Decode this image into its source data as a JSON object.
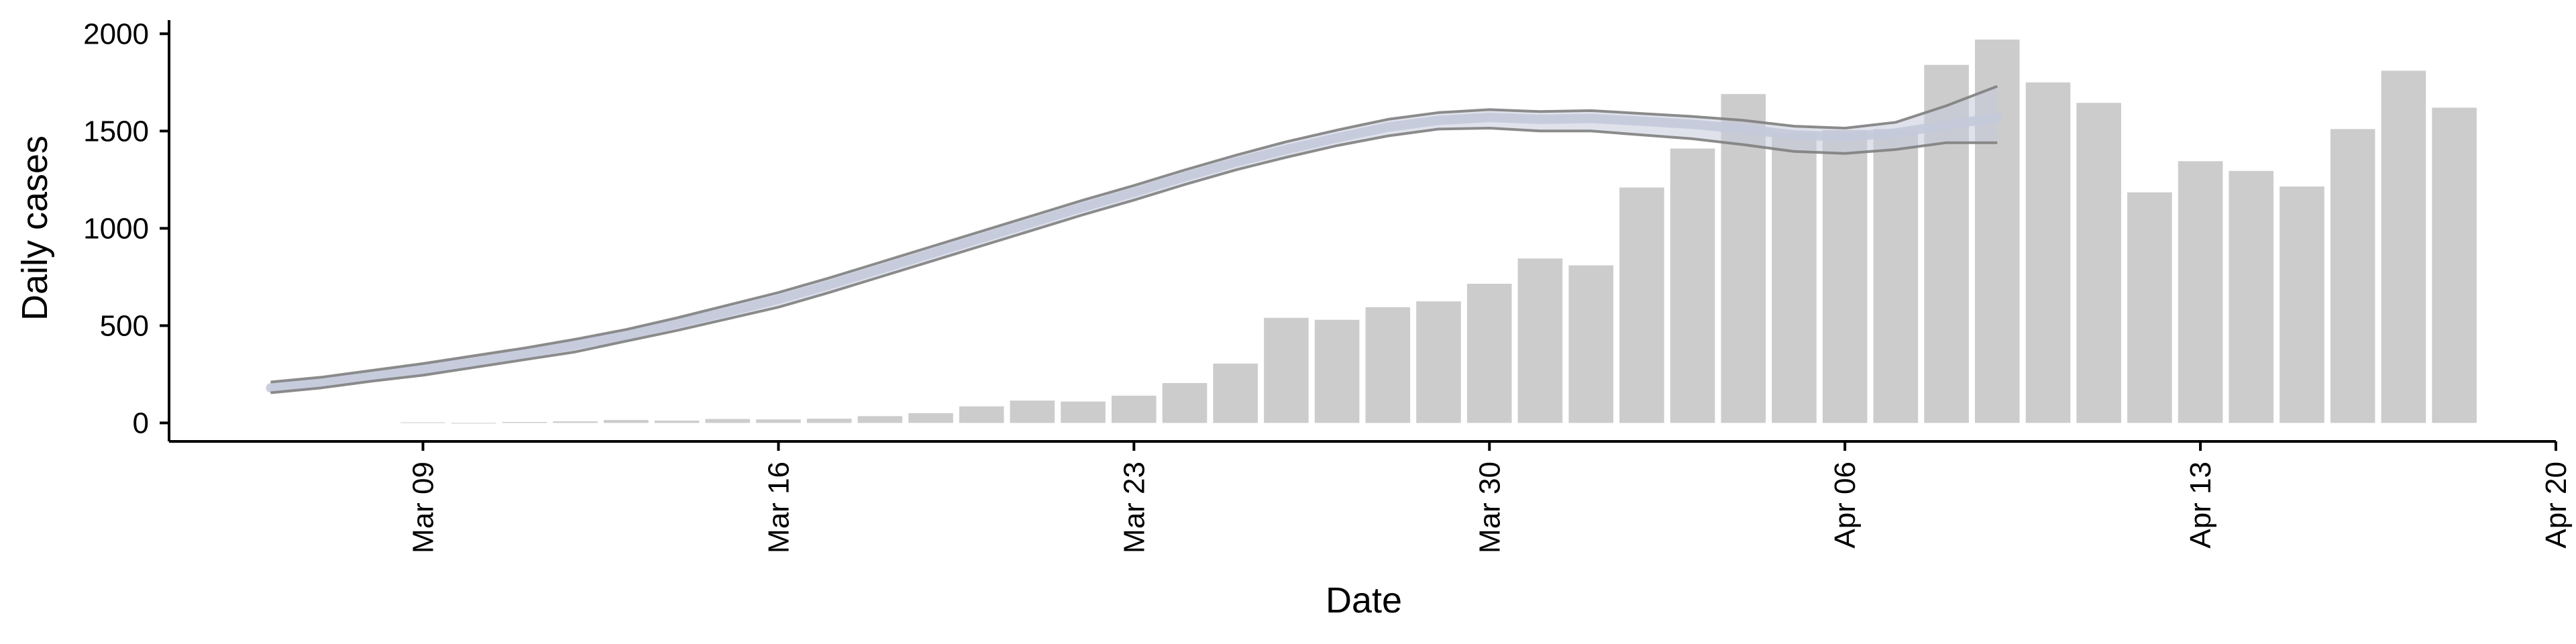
{
  "chart_data": {
    "type": "bar",
    "xlabel": "Date",
    "ylabel": "Daily cases",
    "x_ticks": [
      {
        "label": "Mar 09",
        "day": 9
      },
      {
        "label": "Mar 16",
        "day": 16
      },
      {
        "label": "Mar 23",
        "day": 23
      },
      {
        "label": "Mar 30",
        "day": 30
      },
      {
        "label": "Apr 06",
        "day": 37
      },
      {
        "label": "Apr 13",
        "day": 44
      },
      {
        "label": "Apr 20",
        "day": 51
      }
    ],
    "y_ticks": [
      0,
      500,
      1000,
      1500,
      2000
    ],
    "ylim": [
      -95,
      2070
    ],
    "xlim": [
      "Mar 04",
      "Apr 20"
    ],
    "grid": false,
    "bar_color": "#cccccc",
    "bars": {
      "dates": [
        "Mar 09",
        "Mar 10",
        "Mar 11",
        "Mar 12",
        "Mar 13",
        "Mar 14",
        "Mar 15",
        "Mar 16",
        "Mar 17",
        "Mar 18",
        "Mar 19",
        "Mar 20",
        "Mar 21",
        "Mar 22",
        "Mar 23",
        "Mar 24",
        "Mar 25",
        "Mar 26",
        "Mar 27",
        "Mar 28",
        "Mar 29",
        "Mar 30",
        "Mar 31",
        "Apr 01",
        "Apr 02",
        "Apr 03",
        "Apr 04",
        "Apr 05",
        "Apr 06",
        "Apr 07",
        "Apr 08",
        "Apr 09",
        "Apr 10",
        "Apr 11",
        "Apr 12",
        "Apr 13",
        "Apr 14",
        "Apr 15",
        "Apr 16",
        "Apr 17",
        "Apr 18"
      ],
      "values": [
        3,
        0,
        5,
        8,
        15,
        12,
        20,
        18,
        22,
        35,
        50,
        85,
        115,
        110,
        140,
        205,
        305,
        540,
        530,
        595,
        625,
        715,
        845,
        810,
        1210,
        1410,
        1690,
        1490,
        1505,
        1510,
        1840,
        1970,
        1750,
        1645,
        1185,
        1345,
        1295,
        1215,
        1510,
        1810,
        1620
      ]
    },
    "series": [
      {
        "dates": [
          "Mar 06",
          "Mar 07",
          "Mar 08",
          "Mar 09",
          "Mar 10",
          "Mar 11",
          "Mar 12",
          "Mar 13",
          "Mar 14",
          "Mar 15",
          "Mar 16",
          "Mar 17",
          "Mar 18",
          "Mar 19",
          "Mar 20",
          "Mar 21",
          "Mar 22",
          "Mar 23",
          "Mar 24",
          "Mar 25",
          "Mar 26",
          "Mar 27",
          "Mar 28",
          "Mar 29",
          "Mar 30",
          "Mar 31",
          "Apr 01",
          "Apr 02",
          "Apr 03",
          "Apr 04",
          "Apr 05",
          "Apr 06",
          "Apr 07",
          "Apr 08",
          "Apr 09"
        ],
        "estimate": [
          180,
          205,
          240,
          275,
          315,
          355,
          400,
          450,
          510,
          570,
          635,
          710,
          790,
          870,
          950,
          1030,
          1110,
          1185,
          1265,
          1340,
          1405,
          1465,
          1520,
          1555,
          1570,
          1560,
          1565,
          1550,
          1535,
          1510,
          1480,
          1470,
          1490,
          1530,
          1570
        ],
        "upper": [
          210,
          235,
          270,
          305,
          345,
          385,
          430,
          480,
          540,
          605,
          670,
          745,
          825,
          905,
          985,
          1065,
          1145,
          1220,
          1300,
          1375,
          1445,
          1505,
          1560,
          1595,
          1610,
          1600,
          1605,
          1590,
          1575,
          1555,
          1525,
          1515,
          1545,
          1630,
          1730
        ],
        "lower": [
          155,
          180,
          215,
          245,
          285,
          325,
          365,
          420,
          475,
          535,
          595,
          670,
          750,
          830,
          910,
          990,
          1070,
          1145,
          1225,
          1300,
          1365,
          1425,
          1475,
          1510,
          1515,
          1500,
          1500,
          1480,
          1460,
          1430,
          1395,
          1385,
          1405,
          1440,
          1440
        ],
        "band_color": "#c4cadb",
        "line_color": "#7f7f7f"
      }
    ]
  }
}
